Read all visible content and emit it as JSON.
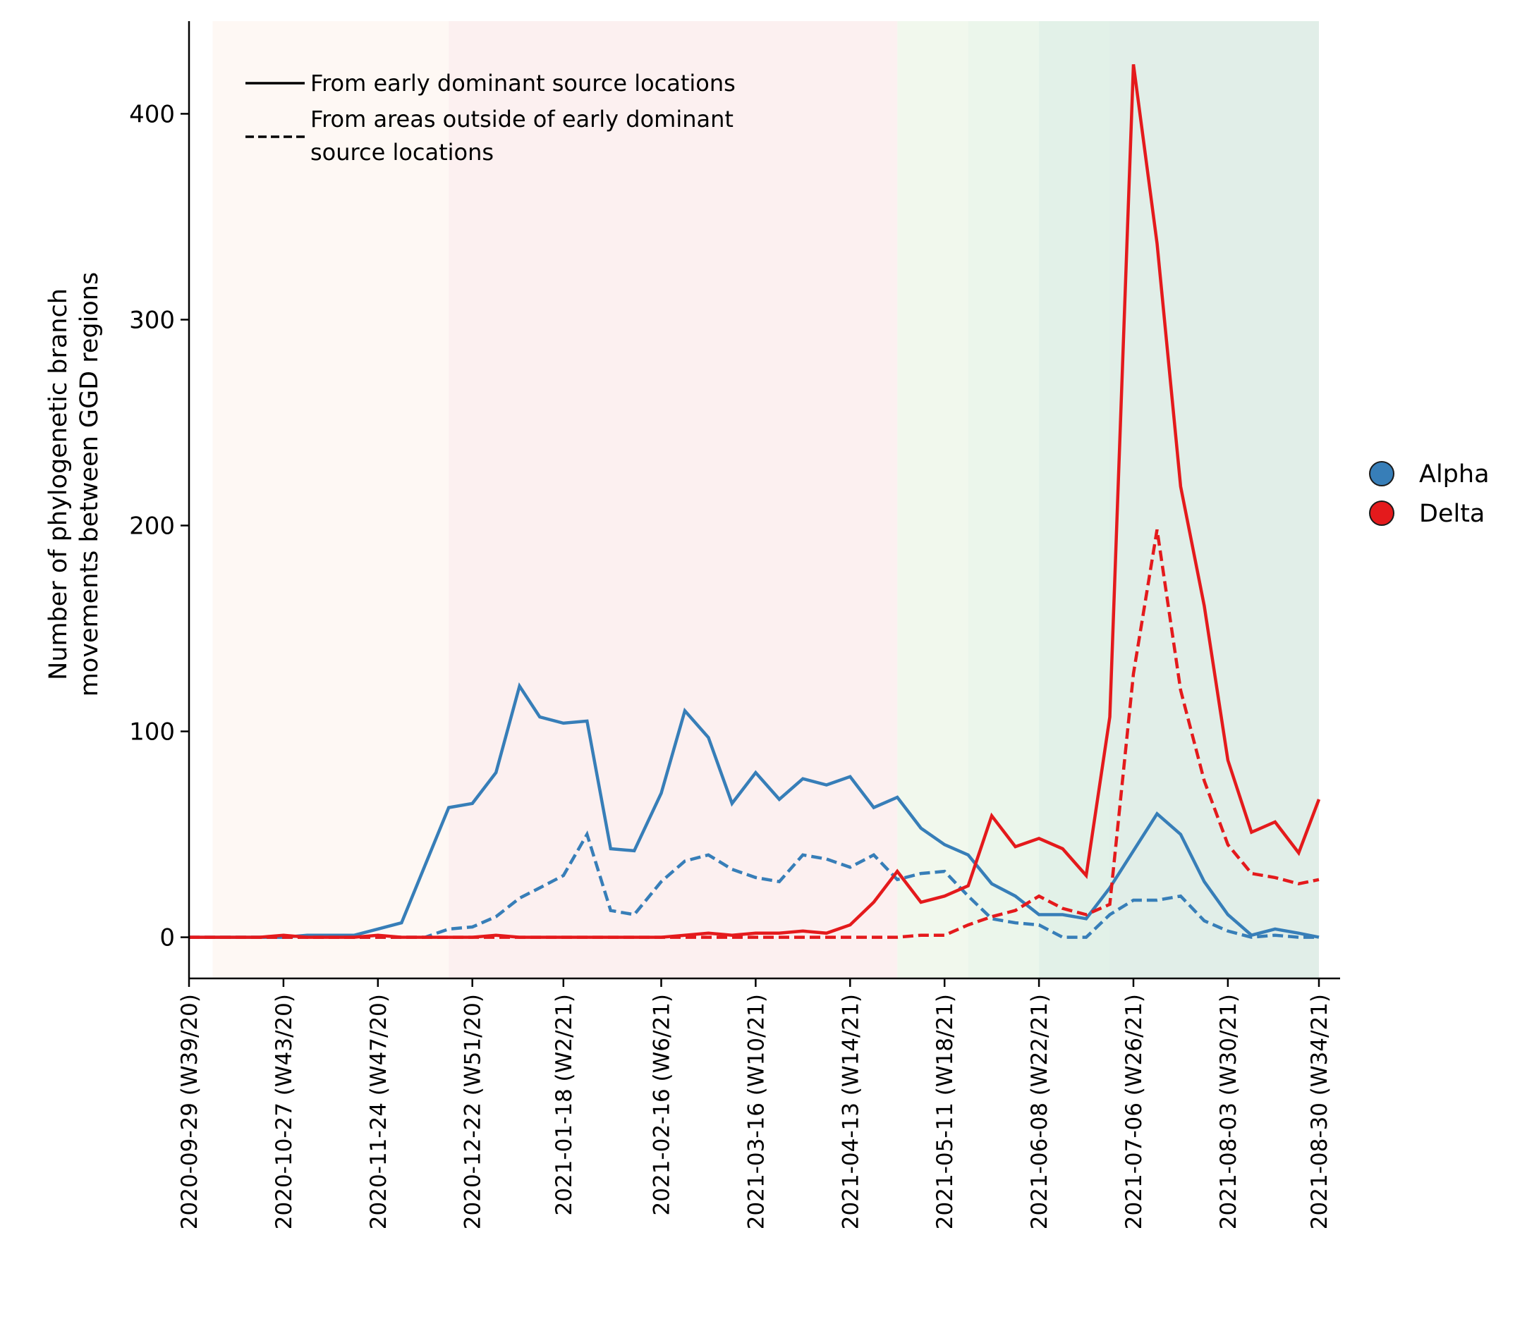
{
  "chart_data": {
    "type": "line",
    "xlabel": "",
    "ylabel": [
      "Number of phylogenetic branch",
      "movements between GGD regions"
    ],
    "ylim": [
      -20,
      445
    ],
    "yticks": [
      0,
      100,
      200,
      300,
      400
    ],
    "grid": false,
    "x_dates": [
      "2020-09-29",
      "2020-10-06",
      "2020-10-13",
      "2020-10-20",
      "2020-10-27",
      "2020-11-03",
      "2020-11-10",
      "2020-11-17",
      "2020-11-24",
      "2020-12-01",
      "2020-12-08",
      "2020-12-15",
      "2020-12-22",
      "2020-12-29",
      "2021-01-05",
      "2021-01-11",
      "2021-01-18",
      "2021-01-25",
      "2021-02-01",
      "2021-02-08",
      "2021-02-16",
      "2021-02-23",
      "2021-03-02",
      "2021-03-09",
      "2021-03-16",
      "2021-03-23",
      "2021-03-30",
      "2021-04-06",
      "2021-04-13",
      "2021-04-20",
      "2021-04-27",
      "2021-05-04",
      "2021-05-11",
      "2021-05-18",
      "2021-05-25",
      "2021-06-01",
      "2021-06-08",
      "2021-06-15",
      "2021-06-22",
      "2021-06-29",
      "2021-07-06",
      "2021-07-13",
      "2021-07-20",
      "2021-07-27",
      "2021-08-03",
      "2021-08-10",
      "2021-08-17",
      "2021-08-24",
      "2021-08-30"
    ],
    "xtick_labels": [
      "2020-09-29 (W39/20)",
      "2020-10-27 (W43/20)",
      "2020-11-24 (W47/20)",
      "2020-12-22 (W51/20)",
      "2021-01-18 (W2/21)",
      "2021-02-16 (W6/21)",
      "2021-03-16 (W10/21)",
      "2021-04-13 (W14/21)",
      "2021-05-11 (W18/21)",
      "2021-06-08 (W22/21)",
      "2021-07-06 (W26/21)",
      "2021-08-03 (W30/21)",
      "2021-08-30 (W34/21)"
    ],
    "background_bands": [
      {
        "from": "2020-10-06",
        "to": "2020-12-15",
        "color": "#fdf0e6",
        "opacity": 0.45
      },
      {
        "from": "2020-12-15",
        "to": "2021-04-27",
        "color": "#f9dede",
        "opacity": 0.45
      },
      {
        "from": "2021-04-27",
        "to": "2021-05-18",
        "color": "#e3f2dc",
        "opacity": 0.5
      },
      {
        "from": "2021-05-18",
        "to": "2021-06-08",
        "color": "#d8eed8",
        "opacity": 0.5
      },
      {
        "from": "2021-06-08",
        "to": "2021-06-29",
        "color": "#cbe6d6",
        "opacity": 0.55
      },
      {
        "from": "2021-06-29",
        "to": "2021-08-30",
        "color": "#bcd9cc",
        "opacity": 0.45
      }
    ],
    "series": [
      {
        "name": "Alpha",
        "variant": "Alpha",
        "source": "From early dominant source locations",
        "color": "#377eb8",
        "dash": "solid",
        "values": [
          0,
          0,
          0,
          0,
          0,
          1,
          1,
          1,
          4,
          7,
          35,
          63,
          65,
          80,
          122,
          107,
          104,
          105,
          43,
          42,
          70,
          110,
          97,
          65,
          80,
          67,
          77,
          74,
          78,
          63,
          68,
          53,
          45,
          40,
          26,
          20,
          11,
          11,
          9,
          24,
          42,
          60,
          50,
          27,
          11,
          1,
          4,
          2,
          0
        ]
      },
      {
        "name": "Alpha",
        "variant": "Alpha",
        "source": "From areas outside of early dominant source locations",
        "color": "#377eb8",
        "dash": "dashed",
        "values": [
          0,
          0,
          0,
          0,
          0,
          0,
          0,
          0,
          0,
          0,
          0,
          4,
          5,
          10,
          19,
          24,
          30,
          50,
          13,
          11,
          27,
          37,
          40,
          33,
          29,
          27,
          40,
          38,
          34,
          40,
          28,
          31,
          32,
          20,
          9,
          7,
          6,
          0,
          0,
          11,
          18,
          18,
          20,
          8,
          3,
          0,
          1,
          0,
          0
        ]
      },
      {
        "name": "Delta",
        "variant": "Delta",
        "source": "From early dominant source locations",
        "color": "#e41a1c",
        "dash": "solid",
        "values": [
          0,
          0,
          0,
          0,
          1,
          0,
          0,
          0,
          1,
          0,
          0,
          0,
          0,
          1,
          0,
          0,
          0,
          0,
          0,
          0,
          0,
          1,
          2,
          1,
          2,
          2,
          3,
          2,
          6,
          17,
          32,
          17,
          20,
          25,
          59,
          44,
          48,
          43,
          30,
          107,
          424,
          337,
          219,
          161,
          86,
          51,
          56,
          41,
          67
        ]
      },
      {
        "name": "Delta",
        "variant": "Delta",
        "source": "From areas outside of early dominant source locations",
        "color": "#e41a1c",
        "dash": "dashed",
        "values": [
          0,
          0,
          0,
          0,
          0,
          0,
          0,
          0,
          0,
          0,
          0,
          0,
          0,
          0,
          0,
          0,
          0,
          0,
          0,
          0,
          0,
          0,
          0,
          0,
          0,
          0,
          0,
          0,
          0,
          0,
          0,
          1,
          1,
          6,
          10,
          13,
          20,
          14,
          11,
          16,
          128,
          198,
          120,
          76,
          45,
          31,
          29,
          26,
          28
        ]
      }
    ]
  },
  "line_style_legend": {
    "items": [
      {
        "dash": "solid",
        "lines": [
          "From early dominant source locations"
        ]
      },
      {
        "dash": "dashed",
        "lines": [
          "From areas outside of early dominant",
          "source locations"
        ]
      }
    ]
  },
  "variant_legend": {
    "items": [
      {
        "label": "Alpha",
        "color": "#377eb8"
      },
      {
        "label": "Delta",
        "color": "#e41a1c"
      }
    ]
  }
}
